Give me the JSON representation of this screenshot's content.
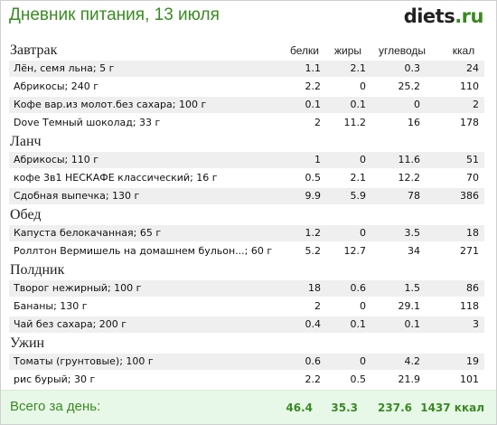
{
  "header": {
    "title": "Дневник питания, 13 июля",
    "logo_name": "diets",
    "logo_tld": ".ru"
  },
  "columns": {
    "protein": "белки",
    "fat": "жиры",
    "carbs": "углеводы",
    "kcal": "ккал"
  },
  "sections": [
    {
      "title": "Завтрак",
      "rows": [
        {
          "name": "Лён, семя льна; 5 г",
          "protein": "1.1",
          "fat": "2.1",
          "carbs": "0.3",
          "kcal": "24"
        },
        {
          "name": "Абрикосы; 240 г",
          "protein": "2.2",
          "fat": "0",
          "carbs": "25.2",
          "kcal": "110"
        },
        {
          "name": "Кофе вар.из молот.без сахара; 100 г",
          "protein": "0.1",
          "fat": "0.1",
          "carbs": "0",
          "kcal": "2"
        },
        {
          "name": "Dove Темный шоколад; 33 г",
          "protein": "2",
          "fat": "11.2",
          "carbs": "16",
          "kcal": "178"
        }
      ]
    },
    {
      "title": "Ланч",
      "rows": [
        {
          "name": "Абрикосы; 110 г",
          "protein": "1",
          "fat": "0",
          "carbs": "11.6",
          "kcal": "51"
        },
        {
          "name": "кофе 3в1 НЕСКАФЕ классический; 16 г",
          "protein": "0.5",
          "fat": "2.1",
          "carbs": "12.2",
          "kcal": "70"
        },
        {
          "name": "Сдобная выпечка; 130 г",
          "protein": "9.9",
          "fat": "5.9",
          "carbs": "78",
          "kcal": "386"
        }
      ]
    },
    {
      "title": "Обед",
      "rows": [
        {
          "name": "Капуста белокачанная; 65 г",
          "protein": "1.2",
          "fat": "0",
          "carbs": "3.5",
          "kcal": "18"
        },
        {
          "name": "Роллтон Вермишель на домашнем бульон...; 60 г",
          "protein": "5.2",
          "fat": "12.7",
          "carbs": "34",
          "kcal": "271"
        }
      ]
    },
    {
      "title": "Полдник",
      "rows": [
        {
          "name": "Творог нежирный; 100 г",
          "protein": "18",
          "fat": "0.6",
          "carbs": "1.5",
          "kcal": "86"
        },
        {
          "name": "Бананы; 130 г",
          "protein": "2",
          "fat": "0",
          "carbs": "29.1",
          "kcal": "118"
        },
        {
          "name": "Чай без сахара; 200 г",
          "protein": "0.4",
          "fat": "0.1",
          "carbs": "0.1",
          "kcal": "3"
        }
      ]
    },
    {
      "title": "Ужин",
      "rows": [
        {
          "name": "Томаты (грунтовые); 100 г",
          "protein": "0.6",
          "fat": "0",
          "carbs": "4.2",
          "kcal": "19"
        },
        {
          "name": "рис бурый; 30 г",
          "protein": "2.2",
          "fat": "0.5",
          "carbs": "21.9",
          "kcal": "101"
        }
      ]
    }
  ],
  "totals": {
    "label": "Всего за день:",
    "protein": "46.4",
    "fat": "35.3",
    "carbs": "237.6",
    "kcal": "1437 ккал"
  },
  "colors": {
    "accent": "#3a8a23",
    "row_shade": "#efefef",
    "footer_bg": "#e8f8e8"
  }
}
